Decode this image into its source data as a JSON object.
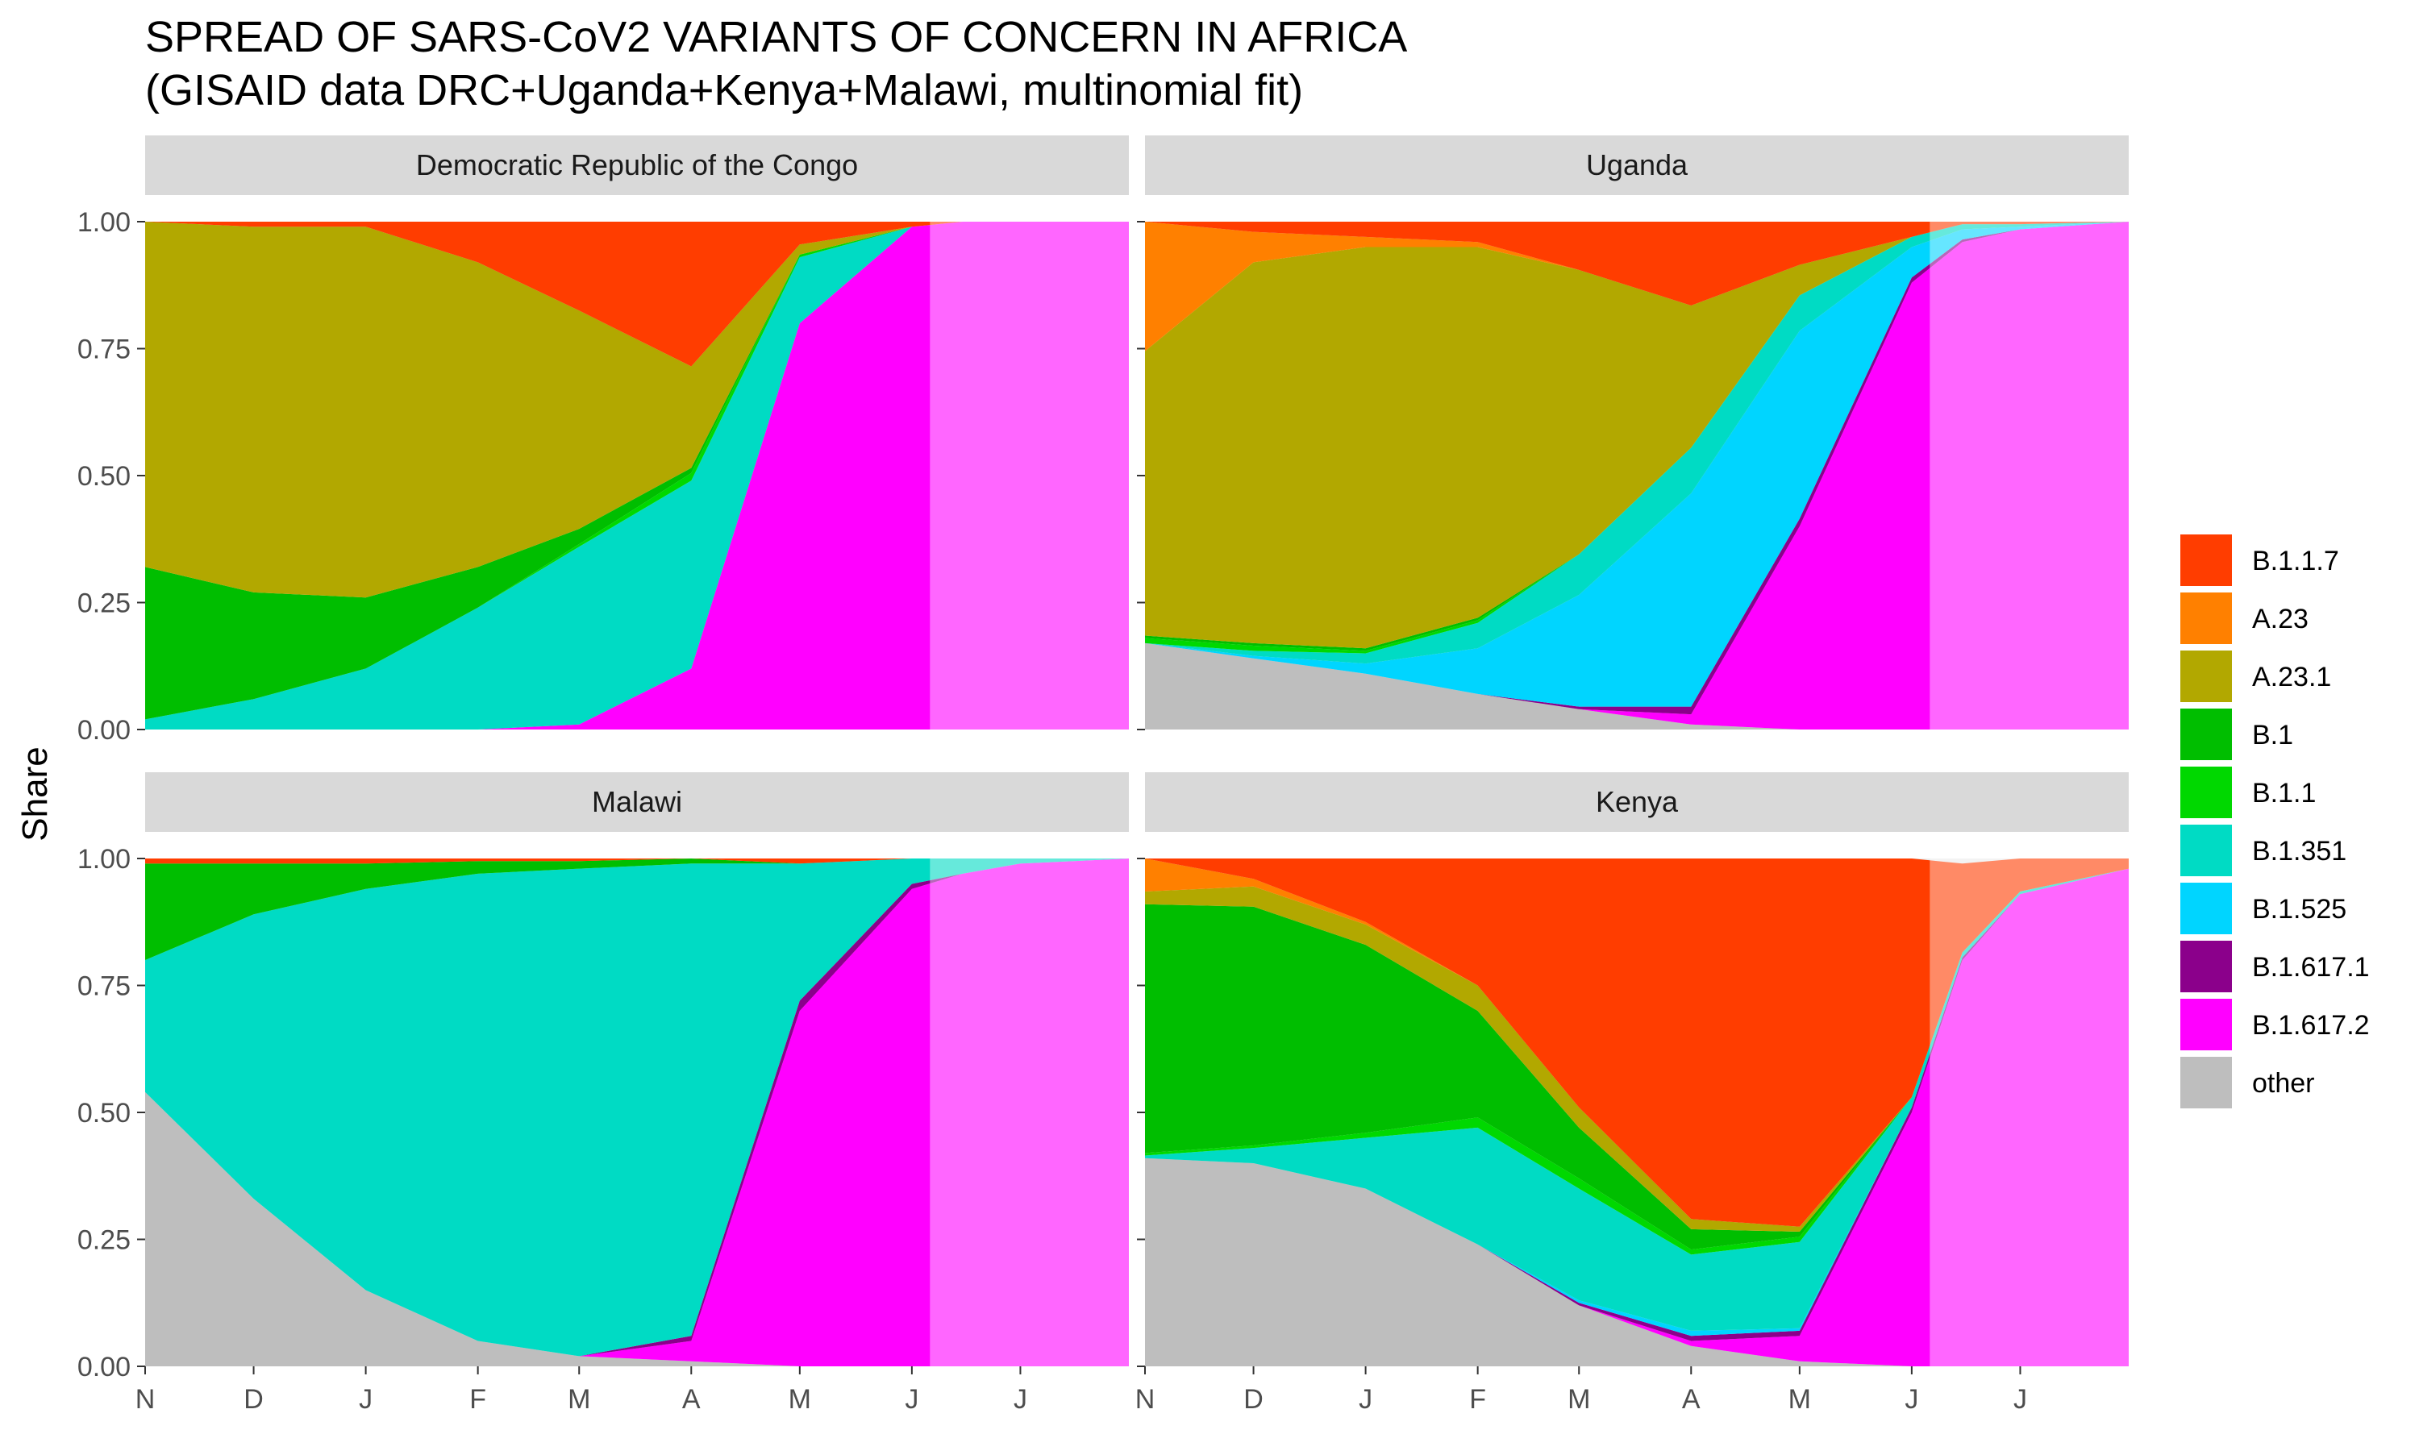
{
  "chart_data": {
    "type": "area",
    "title": "SPREAD OF SARS-CoV2 VARIANTS OF CONCERN IN AFRICA",
    "subtitle": "(GISAID data DRC+Uganda+Kenya+Malawi, multinomial fit)",
    "ylabel": "Share",
    "ylim": [
      0,
      1
    ],
    "y_ticks": [
      "0.00",
      "0.25",
      "0.50",
      "0.75",
      "1.00"
    ],
    "x_ticks": [
      "N",
      "D",
      "J",
      "F",
      "M",
      "A",
      "M",
      "J",
      "J"
    ],
    "x_tick_dates": [
      "2020-11-01",
      "2020-12-01",
      "2021-01-01",
      "2021-02-01",
      "2021-03-01",
      "2021-04-01",
      "2021-05-01",
      "2021-06-01",
      "2021-07-01"
    ],
    "x_range": [
      "2020-11-01",
      "2021-07-31"
    ],
    "forecast_start": "2021-06-06",
    "grid": "on",
    "legend_position": "right",
    "stack_order_bottom_to_top": [
      "other",
      "B.1.617.2",
      "B.1.617.1",
      "B.1.525",
      "B.1.351",
      "B.1.1",
      "B.1",
      "A.23.1",
      "A.23",
      "B.1.1.7"
    ],
    "legend": [
      {
        "name": "B.1.1.7",
        "color": "#FF3D00"
      },
      {
        "name": "A.23",
        "color": "#FF8000"
      },
      {
        "name": "A.23.1",
        "color": "#B2A800"
      },
      {
        "name": "B.1",
        "color": "#00BE00"
      },
      {
        "name": "B.1.1",
        "color": "#00D800"
      },
      {
        "name": "B.1.351",
        "color": "#00DBC4"
      },
      {
        "name": "B.1.525",
        "color": "#00D5FF"
      },
      {
        "name": "B.1.617.1",
        "color": "#8B008B"
      },
      {
        "name": "B.1.617.2",
        "color": "#FF00FF"
      },
      {
        "name": "other",
        "color": "#BEBEBE"
      }
    ],
    "x": [
      "2020-11-01",
      "2020-12-01",
      "2021-01-01",
      "2021-02-01",
      "2021-03-01",
      "2021-04-01",
      "2021-05-01",
      "2021-06-01",
      "2021-06-15",
      "2021-07-01",
      "2021-07-31"
    ],
    "panels": [
      {
        "name": "Democratic Republic of the Congo",
        "series": [
          {
            "name": "other",
            "values": [
              0,
              0,
              0,
              0,
              0,
              0,
              0,
              0,
              0,
              0,
              0
            ]
          },
          {
            "name": "B.1.617.2",
            "values": [
              0,
              0,
              0,
              0,
              0.01,
              0.12,
              0.8,
              0.99,
              1.0,
              1.0,
              1.0
            ]
          },
          {
            "name": "B.1.351",
            "values": [
              0.02,
              0.06,
              0.12,
              0.24,
              0.35,
              0.37,
              0.13,
              0.0,
              0,
              0,
              0
            ]
          },
          {
            "name": "B.1.1",
            "values": [
              0,
              0,
              0,
              0,
              0.005,
              0.015,
              0.005,
              0,
              0,
              0,
              0
            ]
          },
          {
            "name": "B.1",
            "values": [
              0.3,
              0.21,
              0.14,
              0.08,
              0.03,
              0.01,
              0,
              0,
              0,
              0,
              0
            ]
          },
          {
            "name": "A.23.1",
            "values": [
              0.68,
              0.72,
              0.73,
              0.6,
              0.43,
              0.2,
              0.02,
              0.0,
              0,
              0,
              0
            ]
          },
          {
            "name": "B.1.1.7",
            "values": [
              0,
              0.01,
              0.01,
              0.08,
              0.175,
              0.285,
              0.045,
              0.01,
              0,
              0,
              0
            ]
          }
        ]
      },
      {
        "name": "Uganda",
        "series": [
          {
            "name": "other",
            "values": [
              0.17,
              0.14,
              0.11,
              0.07,
              0.04,
              0.01,
              0.0,
              0,
              0,
              0,
              0
            ]
          },
          {
            "name": "B.1.617.2",
            "values": [
              0,
              0,
              0,
              0,
              0,
              0.02,
              0.4,
              0.88,
              0.96,
              0.985,
              1.0
            ]
          },
          {
            "name": "B.1.617.1",
            "values": [
              0,
              0,
              0,
              0,
              0.005,
              0.015,
              0.015,
              0.01,
              0.005,
              0,
              0
            ]
          },
          {
            "name": "B.1.525",
            "values": [
              0,
              0.005,
              0.02,
              0.09,
              0.22,
              0.42,
              0.37,
              0.06,
              0.02,
              0.005,
              0
            ]
          },
          {
            "name": "B.1.351",
            "values": [
              0,
              0.01,
              0.02,
              0.05,
              0.08,
              0.09,
              0.07,
              0.02,
              0.01,
              0.005,
              0
            ]
          },
          {
            "name": "B.1.1",
            "values": [
              0.01,
              0.01,
              0.005,
              0.005,
              0,
              0,
              0,
              0,
              0,
              0,
              0
            ]
          },
          {
            "name": "B.1",
            "values": [
              0.005,
              0.005,
              0.005,
              0.005,
              0,
              0,
              0,
              0,
              0,
              0,
              0
            ]
          },
          {
            "name": "A.23.1",
            "values": [
              0.56,
              0.75,
              0.79,
              0.73,
              0.56,
              0.28,
              0.06,
              0,
              0,
              0,
              0
            ]
          },
          {
            "name": "A.23",
            "values": [
              0.255,
              0.06,
              0.02,
              0.01,
              0,
              0,
              0,
              0,
              0,
              0,
              0
            ]
          },
          {
            "name": "B.1.1.7",
            "values": [
              0,
              0.02,
              0.03,
              0.04,
              0.095,
              0.165,
              0.085,
              0.03,
              0.005,
              0.005,
              0
            ]
          }
        ]
      },
      {
        "name": "Malawi",
        "series": [
          {
            "name": "other",
            "values": [
              0.54,
              0.33,
              0.15,
              0.05,
              0.02,
              0.01,
              0.0,
              0,
              0,
              0,
              0
            ]
          },
          {
            "name": "B.1.617.2",
            "values": [
              0,
              0,
              0,
              0,
              0,
              0.04,
              0.7,
              0.94,
              0.97,
              0.99,
              1.0
            ]
          },
          {
            "name": "B.1.617.1",
            "values": [
              0,
              0,
              0,
              0,
              0,
              0.01,
              0.02,
              0.01,
              0,
              0,
              0
            ]
          },
          {
            "name": "B.1.351",
            "values": [
              0.26,
              0.56,
              0.79,
              0.92,
              0.96,
              0.93,
              0.27,
              0.05,
              0.03,
              0.01,
              0
            ]
          },
          {
            "name": "B.1.1",
            "values": [
              0,
              0,
              0,
              0,
              0,
              0,
              0,
              0,
              0,
              0,
              0
            ]
          },
          {
            "name": "B.1",
            "values": [
              0.19,
              0.1,
              0.05,
              0.025,
              0.015,
              0.01,
              0,
              0,
              0,
              0,
              0
            ]
          },
          {
            "name": "B.1.1.7",
            "values": [
              0.01,
              0.01,
              0.01,
              0.005,
              0.005,
              0.01,
              0.01,
              0,
              0,
              0,
              0
            ]
          }
        ]
      },
      {
        "name": "Kenya",
        "series": [
          {
            "name": "other",
            "values": [
              0.41,
              0.4,
              0.35,
              0.24,
              0.12,
              0.04,
              0.01,
              0.0,
              0,
              0,
              0
            ]
          },
          {
            "name": "B.1.617.2",
            "values": [
              0,
              0,
              0,
              0,
              0,
              0.01,
              0.05,
              0.5,
              0.8,
              0.93,
              0.98
            ]
          },
          {
            "name": "B.1.617.1",
            "values": [
              0,
              0,
              0,
              0,
              0.005,
              0.01,
              0.01,
              0.01,
              0.005,
              0,
              0
            ]
          },
          {
            "name": "B.1.525",
            "values": [
              0,
              0,
              0,
              0,
              0.005,
              0.01,
              0.005,
              0,
              0,
              0,
              0
            ]
          },
          {
            "name": "B.1.351",
            "values": [
              0.005,
              0.03,
              0.1,
              0.23,
              0.22,
              0.15,
              0.17,
              0.02,
              0.01,
              0.005,
              0
            ]
          },
          {
            "name": "B.1.1",
            "values": [
              0.005,
              0.005,
              0.01,
              0.02,
              0.02,
              0.01,
              0.01,
              0,
              0,
              0,
              0
            ]
          },
          {
            "name": "B.1",
            "values": [
              0.49,
              0.47,
              0.37,
              0.21,
              0.1,
              0.04,
              0.01,
              0,
              0,
              0,
              0
            ]
          },
          {
            "name": "A.23.1",
            "values": [
              0.025,
              0.04,
              0.04,
              0.05,
              0.04,
              0.02,
              0.01,
              0,
              0,
              0,
              0
            ]
          },
          {
            "name": "A.23",
            "values": [
              0.065,
              0.015,
              0.005,
              0,
              0,
              0,
              0,
              0,
              0,
              0,
              0
            ]
          },
          {
            "name": "B.1.1.7",
            "values": [
              0,
              0.04,
              0.125,
              0.25,
              0.49,
              0.71,
              0.725,
              0.47,
              0.175,
              0.065,
              0.02
            ]
          }
        ]
      }
    ]
  }
}
